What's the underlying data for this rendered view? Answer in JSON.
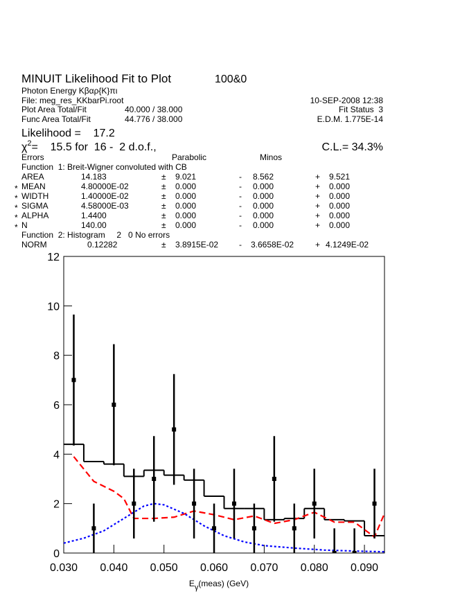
{
  "header": {
    "title": "MINUIT Likelihood Fit to Plot",
    "plot_id": "100&0",
    "subtitle": "Photon Energy Kβαρ{K}πι",
    "file": "File: meg_res_KKbarPi.root",
    "date": "10-SEP-2008 12:38",
    "plot_area_label": "Plot Area Total/Fit",
    "plot_area_value": "40.000 / 38.000",
    "fit_status": "Fit Status  3",
    "func_area_label": "Func Area Total/Fit",
    "func_area_value": "44.776 / 38.000",
    "edm": "E.D.M. 1.775E-14",
    "likelihood": "Likelihood =    17.2",
    "chi2_symbol": "χ",
    "chi2_power": "2",
    "chi2_text": "=    15.5 for  16 -  2 d.o.f.,",
    "cl": "C.L.= 34.3%",
    "errors_label": "Errors",
    "parabolic_label": "Parabolic",
    "minos_label": "Minos",
    "star": "*",
    "pm": "±",
    "minus": "-",
    "plus": "+",
    "function1": "Function  1: Breit-Wigner convoluted with CB",
    "parameters": [
      {
        "fixed": false,
        "name": "AREA",
        "value": "14.183",
        "parabolic": "9.021",
        "minos_minus": "8.562",
        "minos_plus": "9.521"
      },
      {
        "fixed": true,
        "name": "MEAN",
        "value": "4.80000E-02",
        "parabolic": "0.000",
        "minos_minus": "0.000",
        "minos_plus": "0.000"
      },
      {
        "fixed": true,
        "name": "WIDTH",
        "value": "1.40000E-02",
        "parabolic": "0.000",
        "minos_minus": "0.000",
        "minos_plus": "0.000"
      },
      {
        "fixed": true,
        "name": "SIGMA",
        "value": "4.58000E-03",
        "parabolic": "0.000",
        "minos_minus": "0.000",
        "minos_plus": "0.000"
      },
      {
        "fixed": true,
        "name": "ALPHA",
        "value": "1.4400",
        "parabolic": "0.000",
        "minos_minus": "0.000",
        "minos_plus": "0.000"
      },
      {
        "fixed": true,
        "name": "N",
        "value": "140.00",
        "parabolic": "0.000",
        "minos_minus": "0.000",
        "minos_plus": "0.000"
      }
    ],
    "function2": "Function  2: Histogram     2   0 No errors",
    "norm": {
      "name": "NORM",
      "value": "0.12282",
      "parabolic": "3.8915E-02",
      "minos_minus": "3.6658E-02",
      "minos_plus": "4.1249E-02"
    }
  },
  "chart_data": {
    "type": "histogram",
    "x_label": {
      "main": "E",
      "sub": "γ",
      "rest": "(meas) (GeV)"
    },
    "xlim": [
      0.03,
      0.094
    ],
    "ylim": [
      0,
      12
    ],
    "xticks": [
      {
        "value": 0.03,
        "label": "0.030"
      },
      {
        "value": 0.04,
        "label": "0.040"
      },
      {
        "value": 0.05,
        "label": "0.050"
      },
      {
        "value": 0.06,
        "label": "0.060"
      },
      {
        "value": 0.07,
        "label": "0.070"
      },
      {
        "value": 0.08,
        "label": "0.080"
      },
      {
        "value": 0.09,
        "label": "0.090"
      }
    ],
    "yticks": [
      0,
      2,
      4,
      6,
      8,
      10,
      12
    ],
    "series": [
      {
        "type": "step",
        "color": "#000000",
        "bins": [
          0.03,
          0.034,
          0.038,
          0.042,
          0.046,
          0.05,
          0.054,
          0.058,
          0.062,
          0.066,
          0.07,
          0.074,
          0.078,
          0.082,
          0.086,
          0.09,
          0.094
        ],
        "values": [
          4.4,
          3.7,
          3.6,
          3.1,
          3.35,
          3.15,
          2.95,
          2.3,
          1.8,
          1.8,
          1.35,
          1.4,
          1.8,
          1.35,
          1.3,
          0.7
        ]
      },
      {
        "type": "line",
        "color": "#ff0000",
        "dash": "dashed",
        "x": [
          0.032,
          0.036,
          0.04,
          0.042,
          0.044,
          0.048,
          0.052,
          0.056,
          0.06,
          0.064,
          0.068,
          0.072,
          0.076,
          0.08,
          0.084,
          0.088,
          0.092,
          0.094
        ],
        "values": [
          3.9,
          2.9,
          2.5,
          2.2,
          1.4,
          1.4,
          1.45,
          1.7,
          1.55,
          1.35,
          1.5,
          1.2,
          1.35,
          1.65,
          1.25,
          1.25,
          0.65,
          1.6
        ]
      },
      {
        "type": "line",
        "color": "#0000ff",
        "dash": "dotted",
        "x": [
          0.03,
          0.034,
          0.038,
          0.042,
          0.046,
          0.048,
          0.05,
          0.054,
          0.058,
          0.062,
          0.066,
          0.07,
          0.076,
          0.082,
          0.088,
          0.094
        ],
        "values": [
          0.4,
          0.6,
          0.9,
          1.4,
          1.9,
          2.0,
          1.95,
          1.6,
          1.1,
          0.7,
          0.45,
          0.3,
          0.2,
          0.12,
          0.08,
          0.05
        ]
      },
      {
        "type": "errorbar",
        "color": "#000000",
        "x": [
          0.032,
          0.036,
          0.04,
          0.044,
          0.048,
          0.052,
          0.056,
          0.06,
          0.064,
          0.068,
          0.072,
          0.076,
          0.08,
          0.084,
          0.088,
          0.092
        ],
        "values": [
          7,
          1,
          6,
          2,
          3,
          5,
          2,
          1,
          2,
          1,
          3,
          1,
          2,
          0,
          0,
          2
        ],
        "errors": [
          2.65,
          1,
          2.45,
          1.41,
          1.73,
          2.24,
          1.41,
          1,
          1.41,
          1,
          1.73,
          1,
          1.41,
          1,
          1,
          1.41
        ]
      }
    ]
  }
}
